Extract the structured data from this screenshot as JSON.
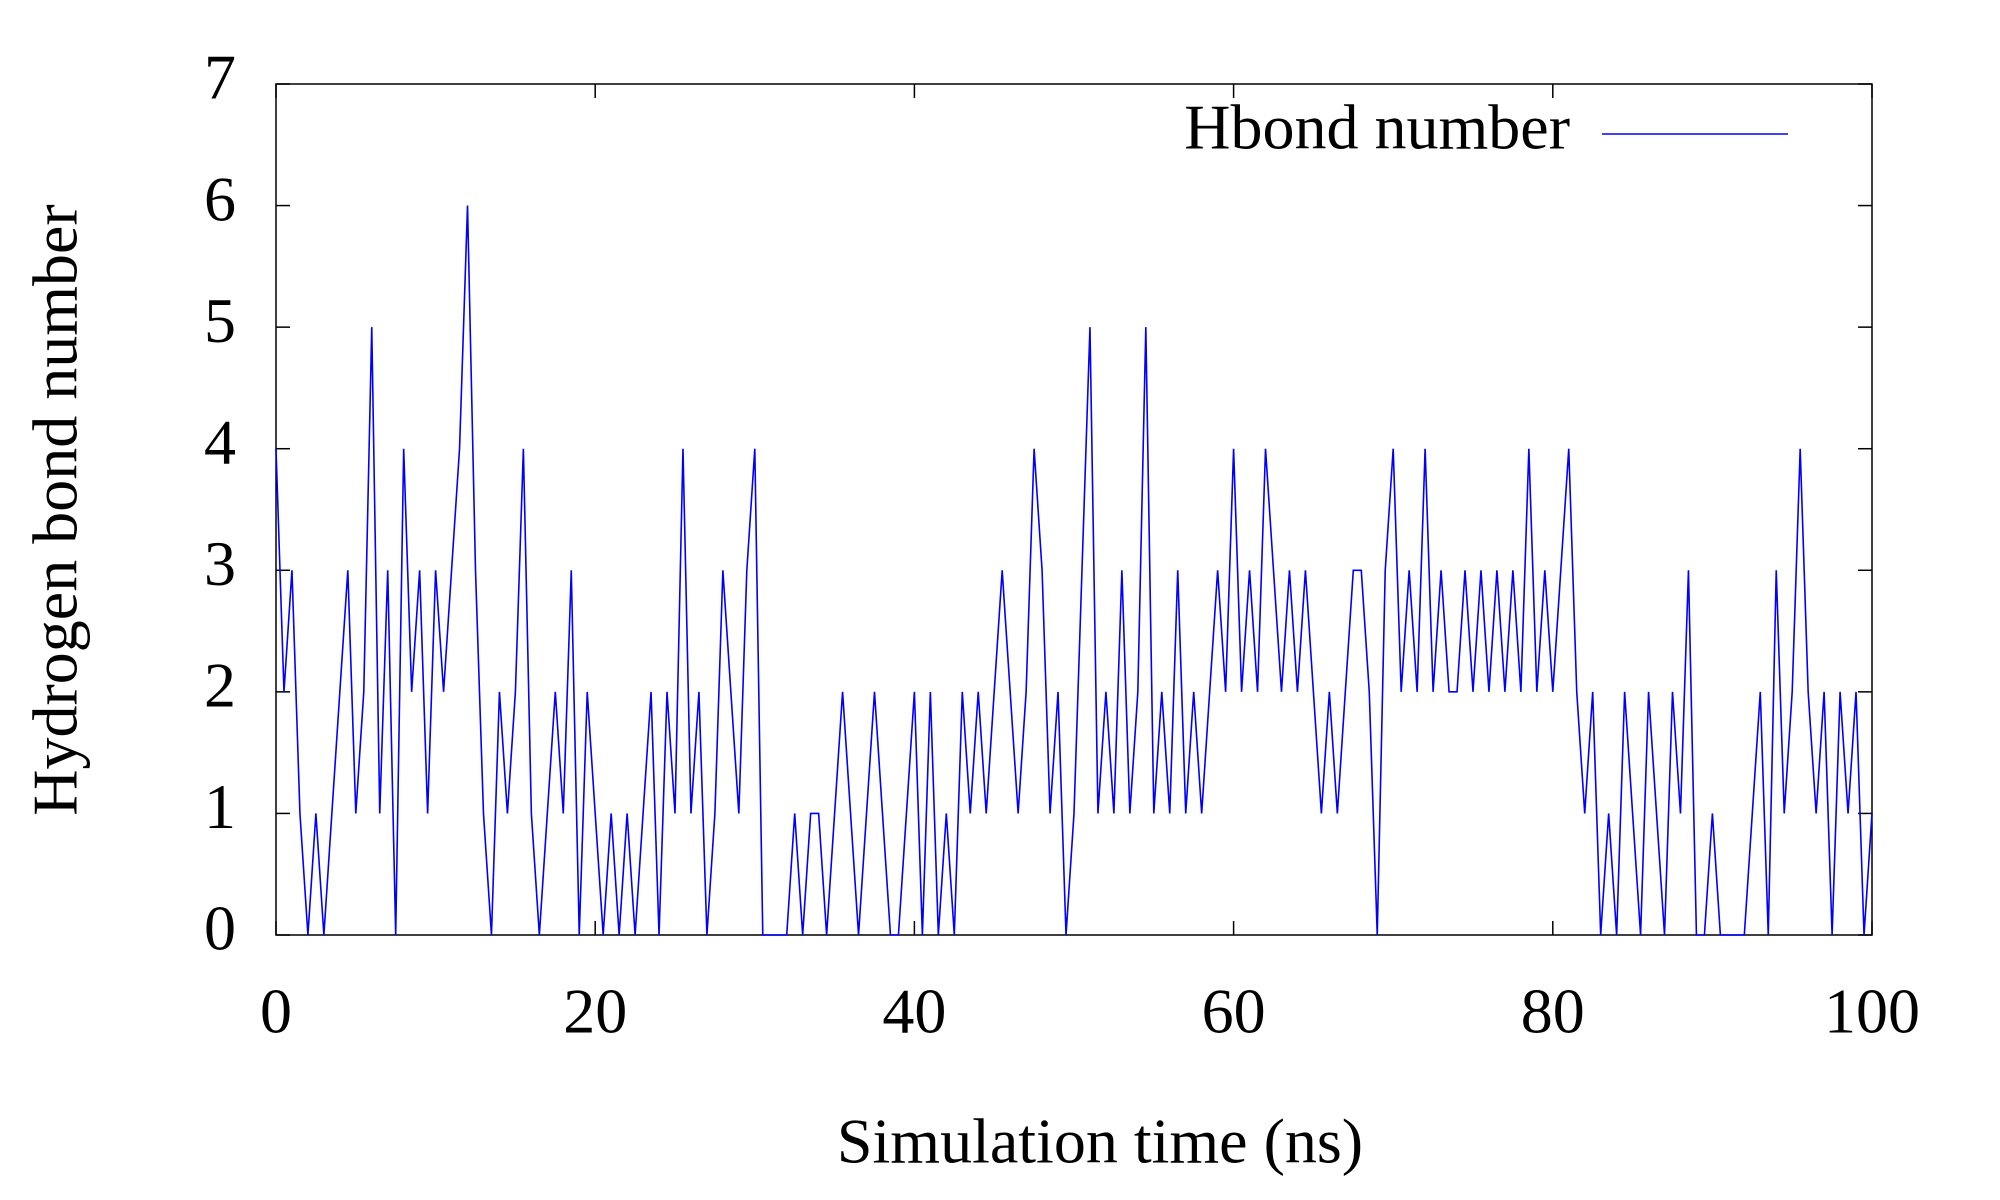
{
  "chart_data": {
    "type": "line",
    "x_label": "Simulation time (ns)",
    "y_label": "Hydrogen bond number",
    "x": [
      0,
      0.5,
      1,
      1.5,
      2,
      2.5,
      3,
      3.5,
      4,
      4.5,
      5,
      5.5,
      6,
      6.5,
      7,
      7.5,
      8,
      8.5,
      9,
      9.5,
      10,
      10.5,
      11,
      11.5,
      12,
      12.5,
      13,
      13.5,
      14,
      14.5,
      15,
      15.5,
      16,
      16.5,
      17,
      17.5,
      18,
      18.5,
      19,
      19.5,
      20,
      20.5,
      21,
      21.5,
      22,
      22.5,
      23,
      23.5,
      24,
      24.5,
      25,
      25.5,
      26,
      26.5,
      27,
      27.5,
      28,
      28.5,
      29,
      29.5,
      30,
      30.5,
      31,
      31.5,
      32,
      32.5,
      33,
      33.5,
      34,
      34.5,
      35,
      35.5,
      36,
      36.5,
      37,
      37.5,
      38,
      38.5,
      39,
      39.5,
      40,
      40.5,
      41,
      41.5,
      42,
      42.5,
      43,
      43.5,
      44,
      44.5,
      45,
      45.5,
      46,
      46.5,
      47,
      47.5,
      48,
      48.5,
      49,
      49.5,
      50,
      50.5,
      51,
      51.5,
      52,
      52.5,
      53,
      53.5,
      54,
      54.5,
      55,
      55.5,
      56,
      56.5,
      57,
      57.5,
      58,
      58.5,
      59,
      59.5,
      60,
      60.5,
      61,
      61.5,
      62,
      62.5,
      63,
      63.5,
      64,
      64.5,
      65,
      65.5,
      66,
      66.5,
      67,
      67.5,
      68,
      68.5,
      69,
      69.5,
      70,
      70.5,
      71,
      71.5,
      72,
      72.5,
      73,
      73.5,
      74,
      74.5,
      75,
      75.5,
      76,
      76.5,
      77,
      77.5,
      78,
      78.5,
      79,
      79.5,
      80,
      80.5,
      81,
      81.5,
      82,
      82.5,
      83,
      83.5,
      84,
      84.5,
      85,
      85.5,
      86,
      86.5,
      87,
      87.5,
      88,
      88.5,
      89,
      89.5,
      90,
      90.5,
      91,
      91.5,
      92,
      92.5,
      93,
      93.5,
      94,
      94.5,
      95,
      95.5,
      96,
      96.5,
      97,
      97.5,
      98,
      98.5,
      99,
      99.5,
      100
    ],
    "series": [
      {
        "name": "Hbond number",
        "color": "#0000ff",
        "values": [
          4,
          2,
          3,
          1,
          0,
          1,
          0,
          1,
          2,
          3,
          1,
          2,
          5,
          1,
          3,
          0,
          4,
          2,
          3,
          1,
          3,
          2,
          3,
          4,
          6,
          3,
          1,
          0,
          2,
          1,
          2,
          4,
          1,
          0,
          1,
          2,
          1,
          3,
          0,
          2,
          1,
          0,
          1,
          0,
          1,
          0,
          1,
          2,
          0,
          2,
          1,
          4,
          1,
          2,
          0,
          1,
          3,
          2,
          1,
          3,
          4,
          0,
          0,
          0,
          0,
          1,
          0,
          1,
          1,
          0,
          1,
          2,
          1,
          0,
          1,
          2,
          1,
          0,
          0,
          1,
          2,
          0,
          2,
          0,
          1,
          0,
          2,
          1,
          2,
          1,
          2,
          3,
          2,
          1,
          2,
          4,
          3,
          1,
          2,
          0,
          1,
          3,
          5,
          1,
          2,
          1,
          3,
          1,
          2,
          5,
          1,
          2,
          1,
          3,
          1,
          2,
          1,
          2,
          3,
          2,
          4,
          2,
          3,
          2,
          4,
          3,
          2,
          3,
          2,
          3,
          2,
          1,
          2,
          1,
          2,
          3,
          3,
          2,
          0,
          3,
          4,
          2,
          3,
          2,
          4,
          2,
          3,
          2,
          2,
          3,
          2,
          3,
          2,
          3,
          2,
          3,
          2,
          4,
          2,
          3,
          2,
          3,
          4,
          2,
          1,
          2,
          0,
          1,
          0,
          2,
          1,
          0,
          2,
          1,
          0,
          2,
          1,
          3,
          0,
          0,
          1,
          0,
          0,
          0,
          0,
          1,
          2,
          0,
          3,
          1,
          2,
          4,
          2,
          1,
          2,
          0,
          2,
          1,
          2,
          0,
          1
        ]
      }
    ],
    "xlim": [
      0,
      100
    ],
    "xticks": [
      0,
      20,
      40,
      60,
      80,
      100
    ],
    "ylim": [
      0,
      7
    ],
    "yticks": [
      0,
      1,
      2,
      3,
      4,
      5,
      6,
      7
    ],
    "legend": "top-right"
  }
}
